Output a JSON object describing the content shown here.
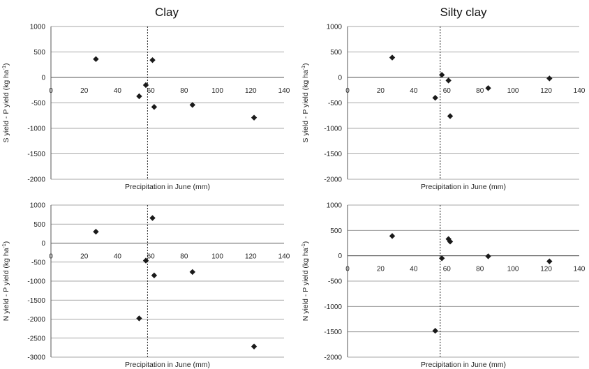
{
  "chart_data": [
    {
      "type": "scatter",
      "title": "Clay",
      "xlabel": "Precipitation in June (mm)",
      "ylabel": "S yield - P yield (kg ha-1)",
      "ylabel_base": "S yield - P yield (kg ha",
      "ylabel_sup": "-1",
      "ylabel_end": ")",
      "xlim": [
        0,
        140
      ],
      "ylim": [
        -2000,
        1000
      ],
      "xticks": [
        "0",
        "20",
        "40",
        "60",
        "80",
        "100",
        "120",
        "140"
      ],
      "yticks": [
        "1000",
        "500",
        "0",
        "-500",
        "-1000",
        "-1500",
        "-2000"
      ],
      "reference_x": 58,
      "grid": "horizontal",
      "points": [
        {
          "x": 27,
          "y": 360
        },
        {
          "x": 53,
          "y": -370
        },
        {
          "x": 57,
          "y": -150
        },
        {
          "x": 61,
          "y": 340
        },
        {
          "x": 62,
          "y": -580
        },
        {
          "x": 85,
          "y": -540
        },
        {
          "x": 122,
          "y": -790
        }
      ]
    },
    {
      "type": "scatter",
      "title": "Silty clay",
      "xlabel": "Precipitation in June (mm)",
      "ylabel": "S yield - P yield (kg ha-1)",
      "ylabel_base": "S yield - P yield (kg ha",
      "ylabel_sup": "-1",
      "ylabel_end": ")",
      "xlim": [
        0,
        140
      ],
      "ylim": [
        -2000,
        1000
      ],
      "xticks": [
        "0",
        "20",
        "40",
        "60",
        "80",
        "100",
        "120",
        "140"
      ],
      "yticks": [
        "1000",
        "500",
        "0",
        "-500",
        "-1000",
        "-1500",
        "-2000"
      ],
      "reference_x": 56,
      "grid": "horizontal",
      "points": [
        {
          "x": 27,
          "y": 390
        },
        {
          "x": 53,
          "y": -400
        },
        {
          "x": 57,
          "y": 50
        },
        {
          "x": 61,
          "y": -60
        },
        {
          "x": 62,
          "y": -760
        },
        {
          "x": 85,
          "y": -210
        },
        {
          "x": 122,
          "y": -20
        }
      ]
    },
    {
      "type": "scatter",
      "title": "",
      "xlabel": "Precipitation in June (mm)",
      "ylabel": "N yield - P yield (kg ha-1)",
      "ylabel_base": "N yield - P yield (kg ha",
      "ylabel_sup": "-1",
      "ylabel_end": ")",
      "xlim": [
        0,
        140
      ],
      "ylim": [
        -3000,
        1000
      ],
      "xticks": [
        "0",
        "20",
        "40",
        "60",
        "80",
        "100",
        "120",
        "140"
      ],
      "yticks": [
        "1000",
        "500",
        "0",
        "-500",
        "-1000",
        "-1500",
        "-2000",
        "-2500",
        "-3000"
      ],
      "reference_x": 58,
      "grid": "horizontal",
      "points": [
        {
          "x": 27,
          "y": 300
        },
        {
          "x": 53,
          "y": -1980
        },
        {
          "x": 57,
          "y": -460
        },
        {
          "x": 61,
          "y": 660
        },
        {
          "x": 62,
          "y": -850
        },
        {
          "x": 85,
          "y": -760
        },
        {
          "x": 122,
          "y": -2720
        }
      ]
    },
    {
      "type": "scatter",
      "title": "",
      "xlabel": "Precipitation in June (mm)",
      "ylabel": "N yield - P yield (kg ha-1)",
      "ylabel_base": "N yield - P yield (kg ha",
      "ylabel_sup": "-1",
      "ylabel_end": ")",
      "xlim": [
        0,
        140
      ],
      "ylim": [
        -2000,
        1000
      ],
      "xticks": [
        "0",
        "20",
        "40",
        "60",
        "80",
        "100",
        "120",
        "140"
      ],
      "yticks": [
        "1000",
        "500",
        "0",
        "-500",
        "-1000",
        "-1500",
        "-2000"
      ],
      "reference_x": 56,
      "grid": "horizontal",
      "points": [
        {
          "x": 27,
          "y": 390
        },
        {
          "x": 53,
          "y": -1480
        },
        {
          "x": 57,
          "y": -50
        },
        {
          "x": 61,
          "y": 330
        },
        {
          "x": 62,
          "y": 280
        },
        {
          "x": 85,
          "y": -10
        },
        {
          "x": 122,
          "y": -110
        }
      ]
    }
  ],
  "colors": {
    "marker": "#1a1a1a",
    "grid": "#8a8a8a",
    "axis": "#555555",
    "reference_line": "#111111"
  }
}
